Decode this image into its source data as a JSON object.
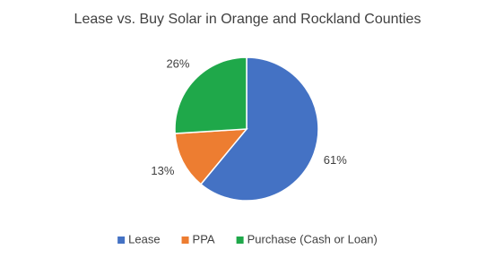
{
  "chart_data": {
    "type": "pie",
    "title": "Lease vs. Buy Solar in  Orange and Rockland Counties",
    "categories": [
      "Lease",
      "PPA",
      "Purchase (Cash or Loan)"
    ],
    "values": [
      61,
      13,
      26
    ],
    "value_labels": [
      "61%",
      "13%",
      "26%"
    ],
    "colors": [
      "#4472c4",
      "#ed7d31",
      "#1fa84a"
    ],
    "legend": "bottom"
  }
}
